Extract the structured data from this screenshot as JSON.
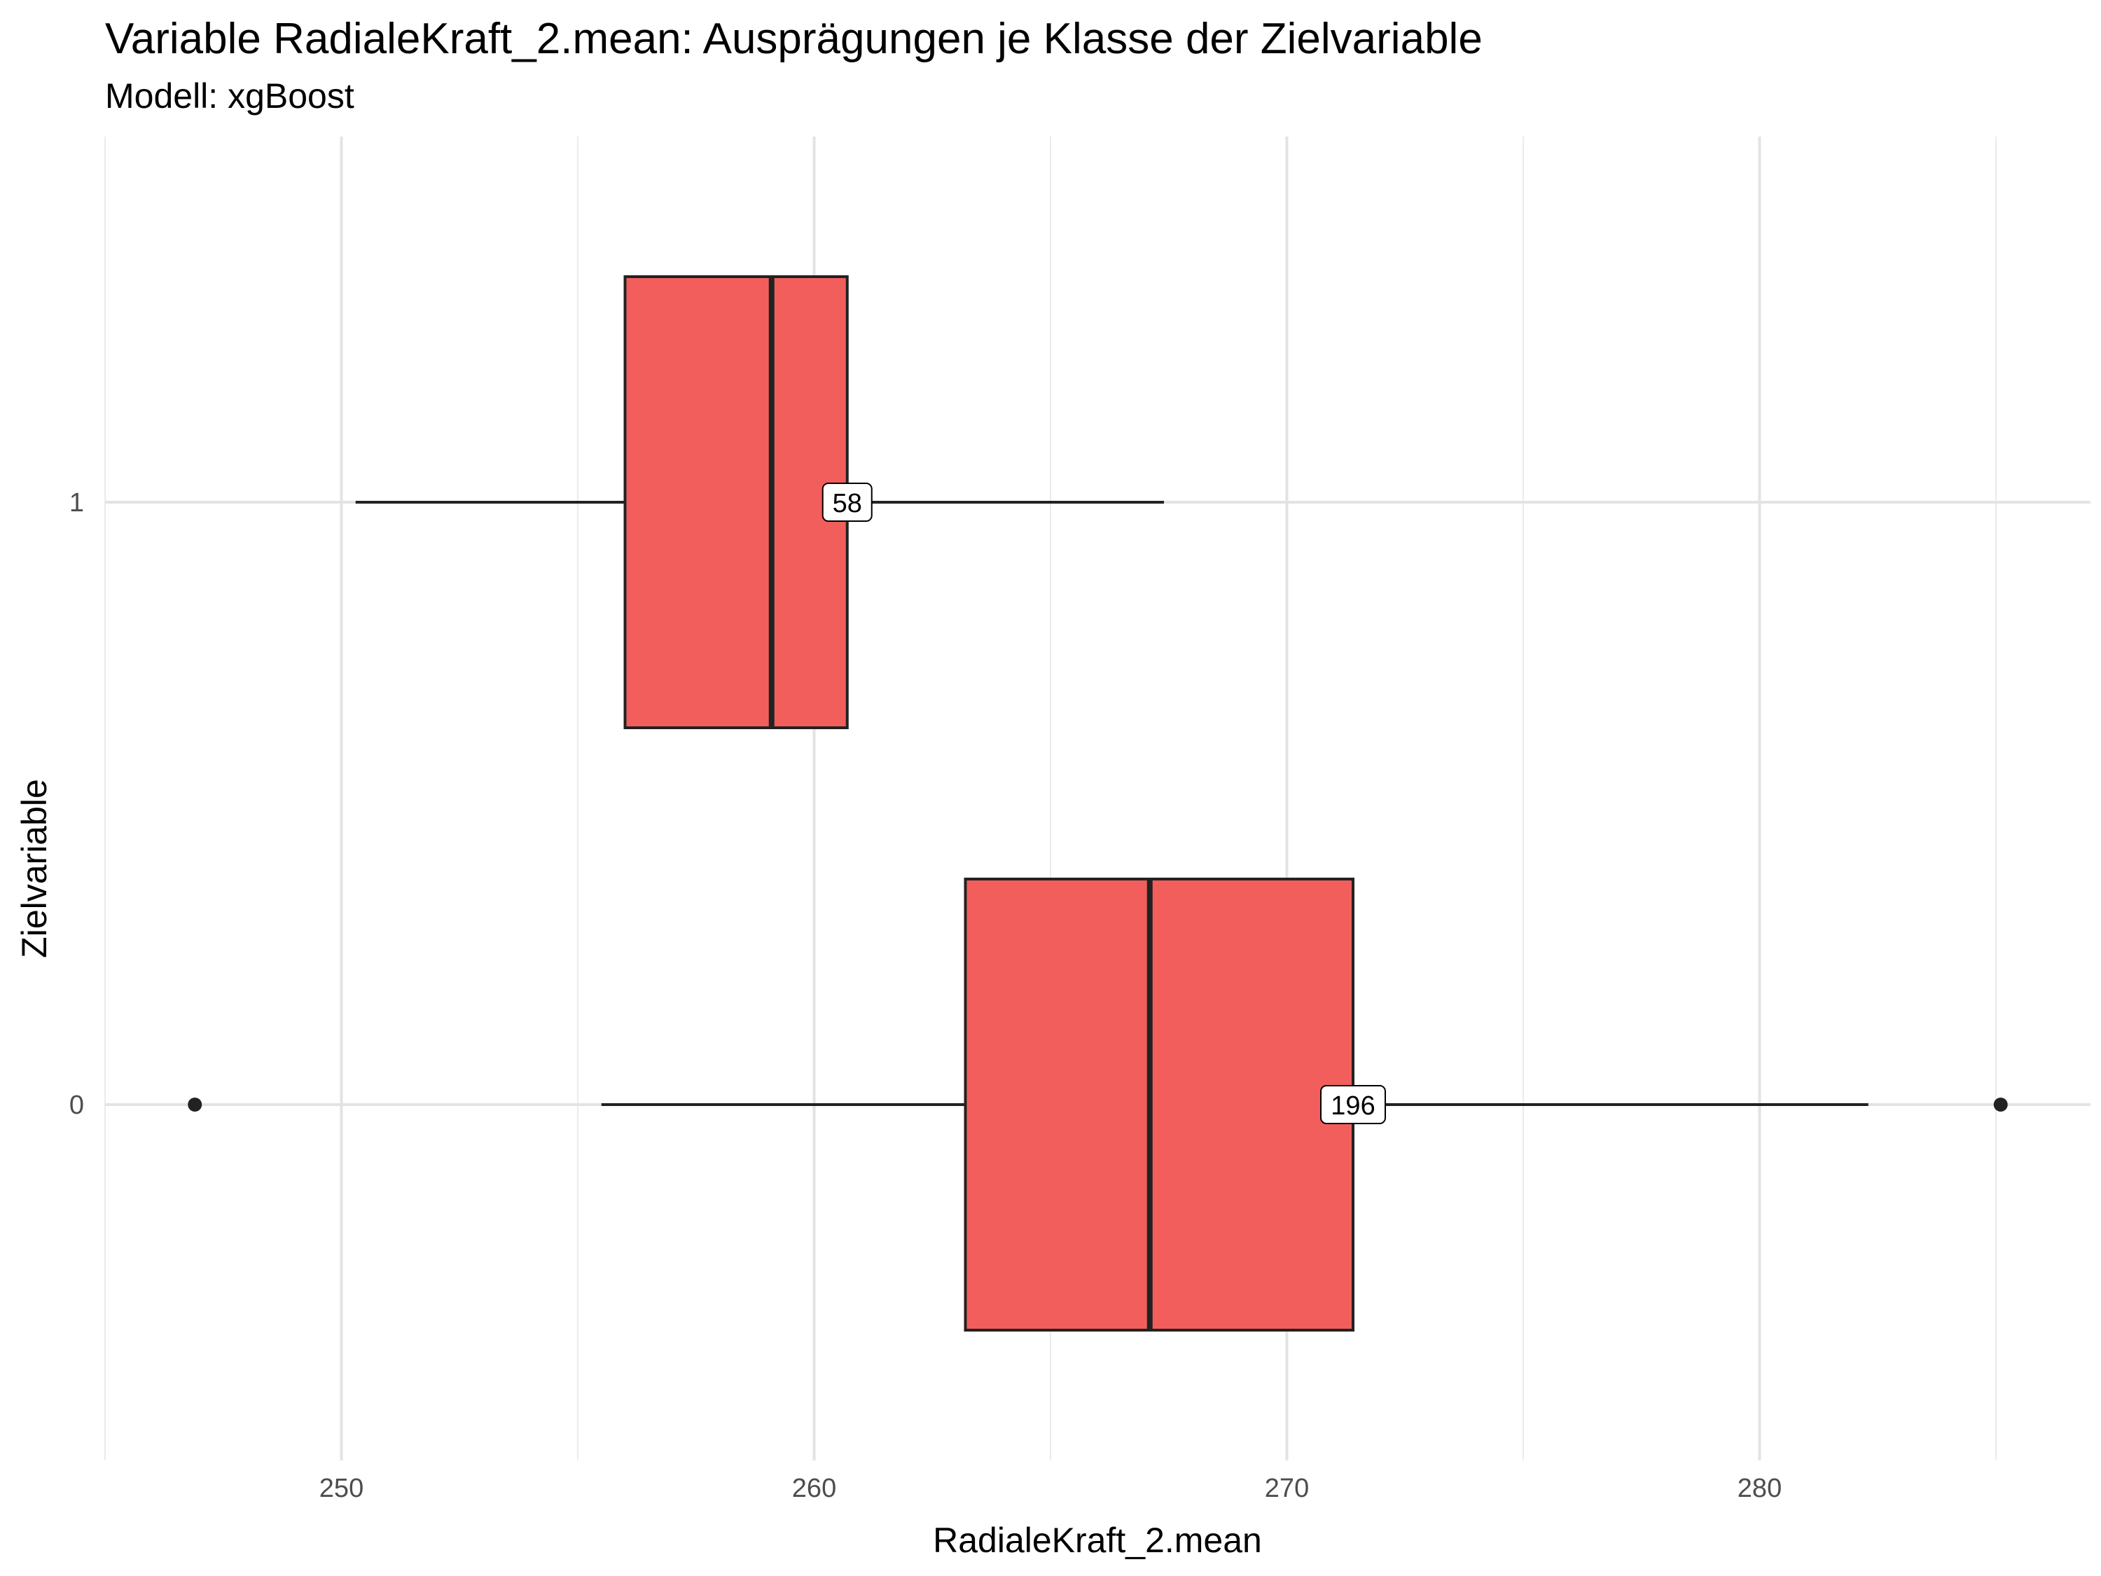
{
  "chart_data": {
    "type": "boxplot",
    "orientation": "horizontal",
    "title": "Variable RadialeKraft_2.mean: Ausprägungen je Klasse der Zielvariable",
    "subtitle": "Modell: xgBoost",
    "xlabel": "RadialeKraft_2.mean",
    "ylabel": "Zielvariable",
    "xlim": [
      245,
      287
    ],
    "x_ticks": [
      250,
      260,
      270,
      280
    ],
    "categories": [
      "0",
      "1"
    ],
    "grid": true,
    "fill_color": "#F25E5B",
    "boxes": [
      {
        "category": "0",
        "whisker_low": 255.5,
        "q1": 263.2,
        "median": 267.1,
        "q3": 271.4,
        "whisker_high": 282.3,
        "outliers": [
          246.9,
          285.1
        ],
        "count_label": "196"
      },
      {
        "category": "1",
        "whisker_low": 250.3,
        "q1": 256.0,
        "median": 259.1,
        "q3": 260.7,
        "whisker_high": 267.4,
        "outliers": [],
        "count_label": "58"
      }
    ]
  }
}
